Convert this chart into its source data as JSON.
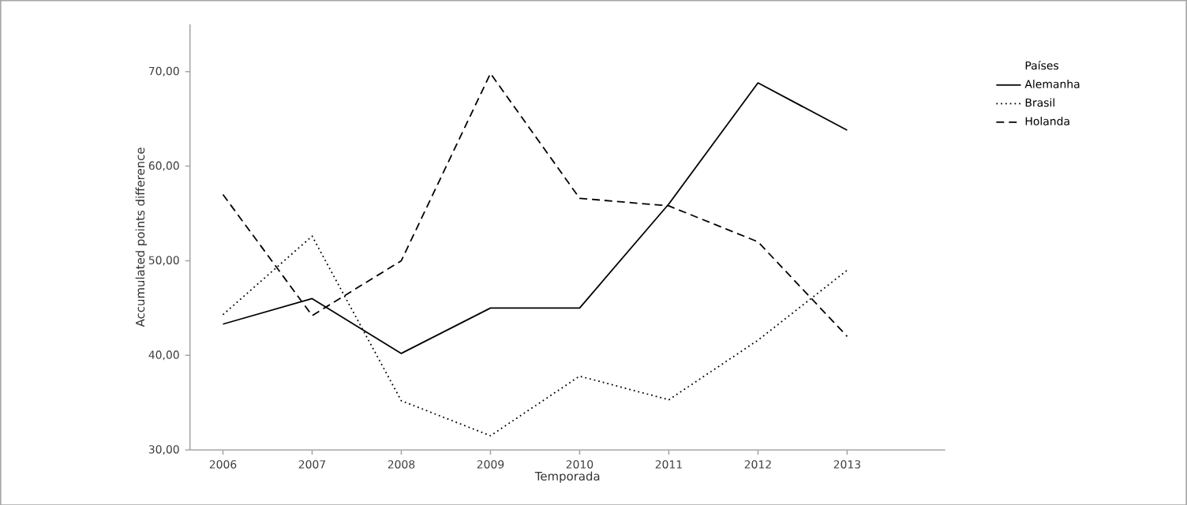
{
  "chart_data": {
    "type": "line",
    "xlabel": "Temporada",
    "ylabel": "Accumulated points difference",
    "legend_title": "Países",
    "legend": "right",
    "categories": [
      "2006",
      "2007",
      "2008",
      "2009",
      "2010",
      "2011",
      "2012",
      "2013"
    ],
    "ylim": [
      30,
      75
    ],
    "yticks": [
      {
        "value": 30,
        "label": "30,00"
      },
      {
        "value": 40,
        "label": "40,00"
      },
      {
        "value": 50,
        "label": "50,00"
      },
      {
        "value": 60,
        "label": "60,00"
      },
      {
        "value": 70,
        "label": "70,00"
      }
    ],
    "series": [
      {
        "name": "Alemanha",
        "color": "#000000",
        "line_style": "solid",
        "values": [
          43.3,
          46,
          40.2,
          45,
          45,
          56,
          68.8,
          63.8
        ]
      },
      {
        "name": "Brasil",
        "color": "#000000",
        "line_style": "dotted",
        "values": [
          44.3,
          52.6,
          35.2,
          31.5,
          37.8,
          35.3,
          41.6,
          49
        ]
      },
      {
        "name": "Holanda",
        "color": "#000000",
        "line_style": "dashed",
        "values": [
          57,
          44.2,
          50,
          69.8,
          56.6,
          55.8,
          52,
          42
        ]
      }
    ]
  }
}
